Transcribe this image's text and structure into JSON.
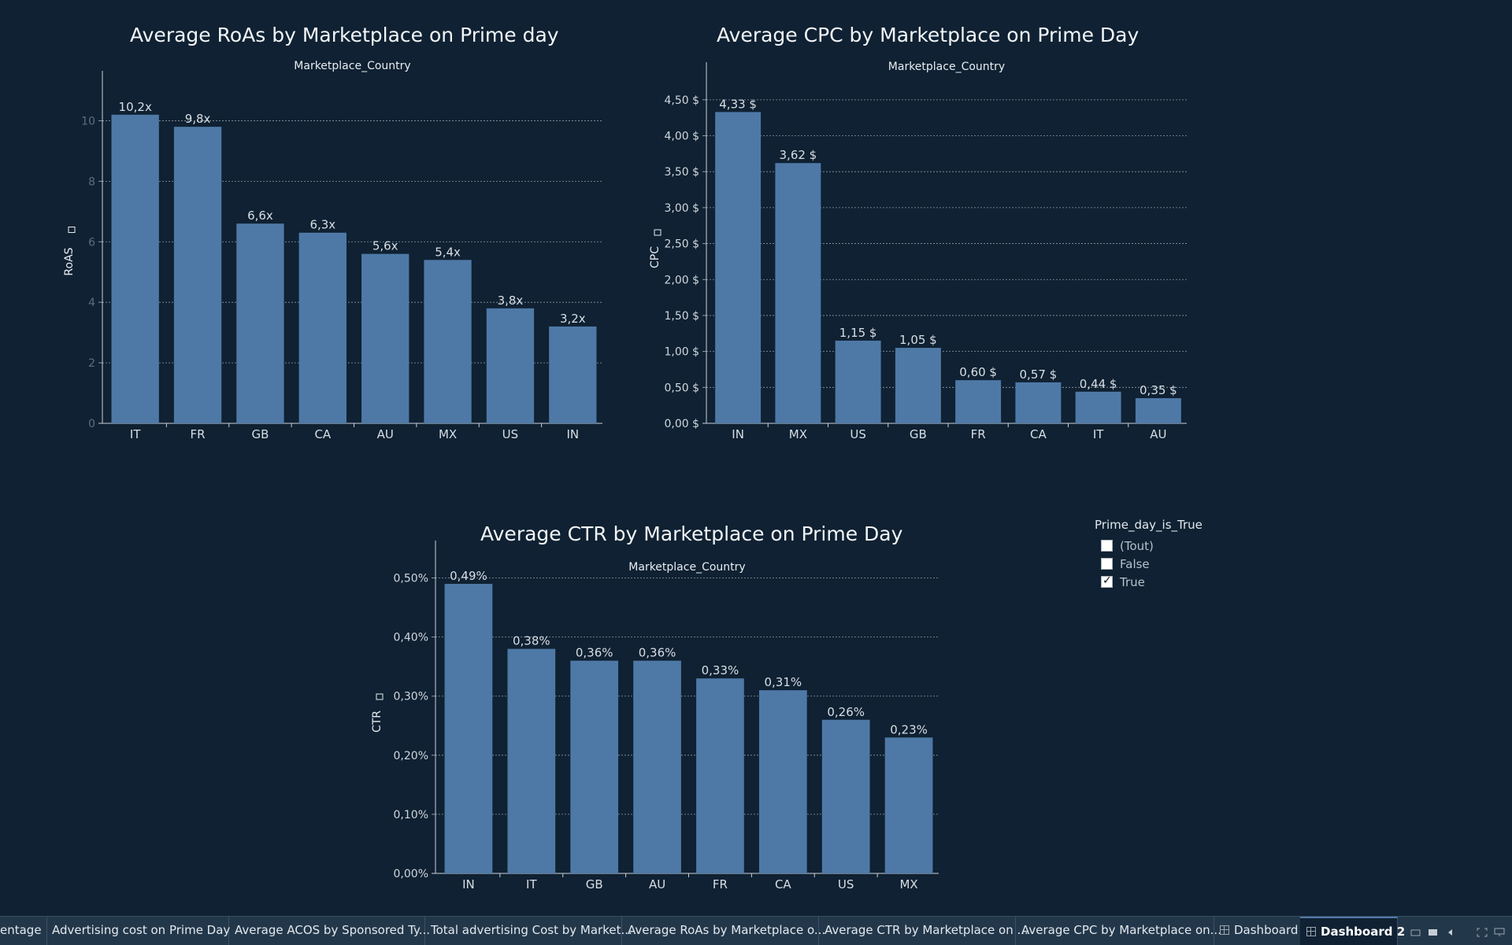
{
  "charts": {
    "roas": {
      "title": "Average RoAs by Marketplace on Prime day",
      "header": "Marketplace_Country",
      "ylabel": "RoAS"
    },
    "cpc": {
      "title": "Average CPC by Marketplace on Prime Day",
      "header": "Marketplace_Country",
      "ylabel": "CPC"
    },
    "ctr": {
      "title": "Average CTR by Marketplace on Prime Day",
      "header": "Marketplace_Country",
      "ylabel": "CTR"
    }
  },
  "chart_data": [
    {
      "type": "bar",
      "title": "Average RoAs by Marketplace on Prime day",
      "xlabel": "Marketplace_Country",
      "ylabel": "RoAS",
      "categories": [
        "IT",
        "FR",
        "GB",
        "CA",
        "AU",
        "MX",
        "US",
        "IN"
      ],
      "values": [
        10.2,
        9.8,
        6.6,
        6.3,
        5.6,
        5.4,
        3.8,
        3.2
      ],
      "data_labels": [
        "10,2x",
        "9,8x",
        "6,6x",
        "6,3x",
        "5,6x",
        "5,4x",
        "3,8x",
        "3,2x"
      ],
      "yticks": [
        0,
        2,
        4,
        6,
        8,
        10
      ],
      "ytick_labels": [
        "0",
        "2",
        "4",
        "6",
        "8",
        "10"
      ],
      "ylim": [
        0,
        11
      ],
      "grid": true
    },
    {
      "type": "bar",
      "title": "Average CPC by Marketplace on Prime Day",
      "xlabel": "Marketplace_Country",
      "ylabel": "CPC",
      "categories": [
        "IN",
        "MX",
        "US",
        "GB",
        "FR",
        "CA",
        "IT",
        "AU"
      ],
      "values": [
        4.33,
        3.62,
        1.15,
        1.05,
        0.6,
        0.57,
        0.44,
        0.35
      ],
      "data_labels": [
        "4,33 $",
        "3,62 $",
        "1,15 $",
        "1,05 $",
        "0,60 $",
        "0,57 $",
        "0,44 $",
        "0,35 $"
      ],
      "yticks": [
        0,
        0.5,
        1,
        1.5,
        2,
        2.5,
        3,
        3.5,
        4,
        4.5
      ],
      "ytick_labels": [
        "0,00 $",
        "0,50 $",
        "1,00 $",
        "1,50 $",
        "2,00 $",
        "2,50 $",
        "3,00 $",
        "3,50 $",
        "4,00 $",
        "4,50 $"
      ],
      "ylim": [
        0,
        4.75
      ],
      "grid": true
    },
    {
      "type": "bar",
      "title": "Average CTR by Marketplace on Prime Day",
      "xlabel": "Marketplace_Country",
      "ylabel": "CTR",
      "categories": [
        "IN",
        "IT",
        "GB",
        "AU",
        "FR",
        "CA",
        "US",
        "MX"
      ],
      "values": [
        0.49,
        0.38,
        0.36,
        0.36,
        0.33,
        0.31,
        0.26,
        0.23
      ],
      "data_labels": [
        "0,49%",
        "0,38%",
        "0,36%",
        "0,36%",
        "0,33%",
        "0,31%",
        "0,26%",
        "0,23%"
      ],
      "yticks": [
        0,
        0.1,
        0.2,
        0.3,
        0.4,
        0.5
      ],
      "ytick_labels": [
        "0,00%",
        "0,10%",
        "0,20%",
        "0,30%",
        "0,40%",
        "0,50%"
      ],
      "ylim": [
        0,
        0.53
      ],
      "grid": true
    }
  ],
  "filter": {
    "title": "Prime_day_is_True",
    "items": [
      {
        "label": "(Tout)",
        "checked": false
      },
      {
        "label": "False",
        "checked": false
      },
      {
        "label": "True",
        "checked": true
      }
    ]
  },
  "tabs": [
    {
      "label": "entage"
    },
    {
      "label": "Advertising cost on Prime Day"
    },
    {
      "label": "Average ACOS by Sponsored Ty..."
    },
    {
      "label": "Total advertising Cost by Market..."
    },
    {
      "label": "Average RoAs by Marketplace o..."
    },
    {
      "label": "Average CTR by Marketplace on ..."
    },
    {
      "label": "Average CPC by Marketplace on..."
    },
    {
      "label": "Dashboard"
    },
    {
      "label": "Dashboard 2"
    }
  ],
  "colors": {
    "bar": "#4e79a7",
    "background": "#0f2132",
    "tab_bar": "#23374a"
  }
}
